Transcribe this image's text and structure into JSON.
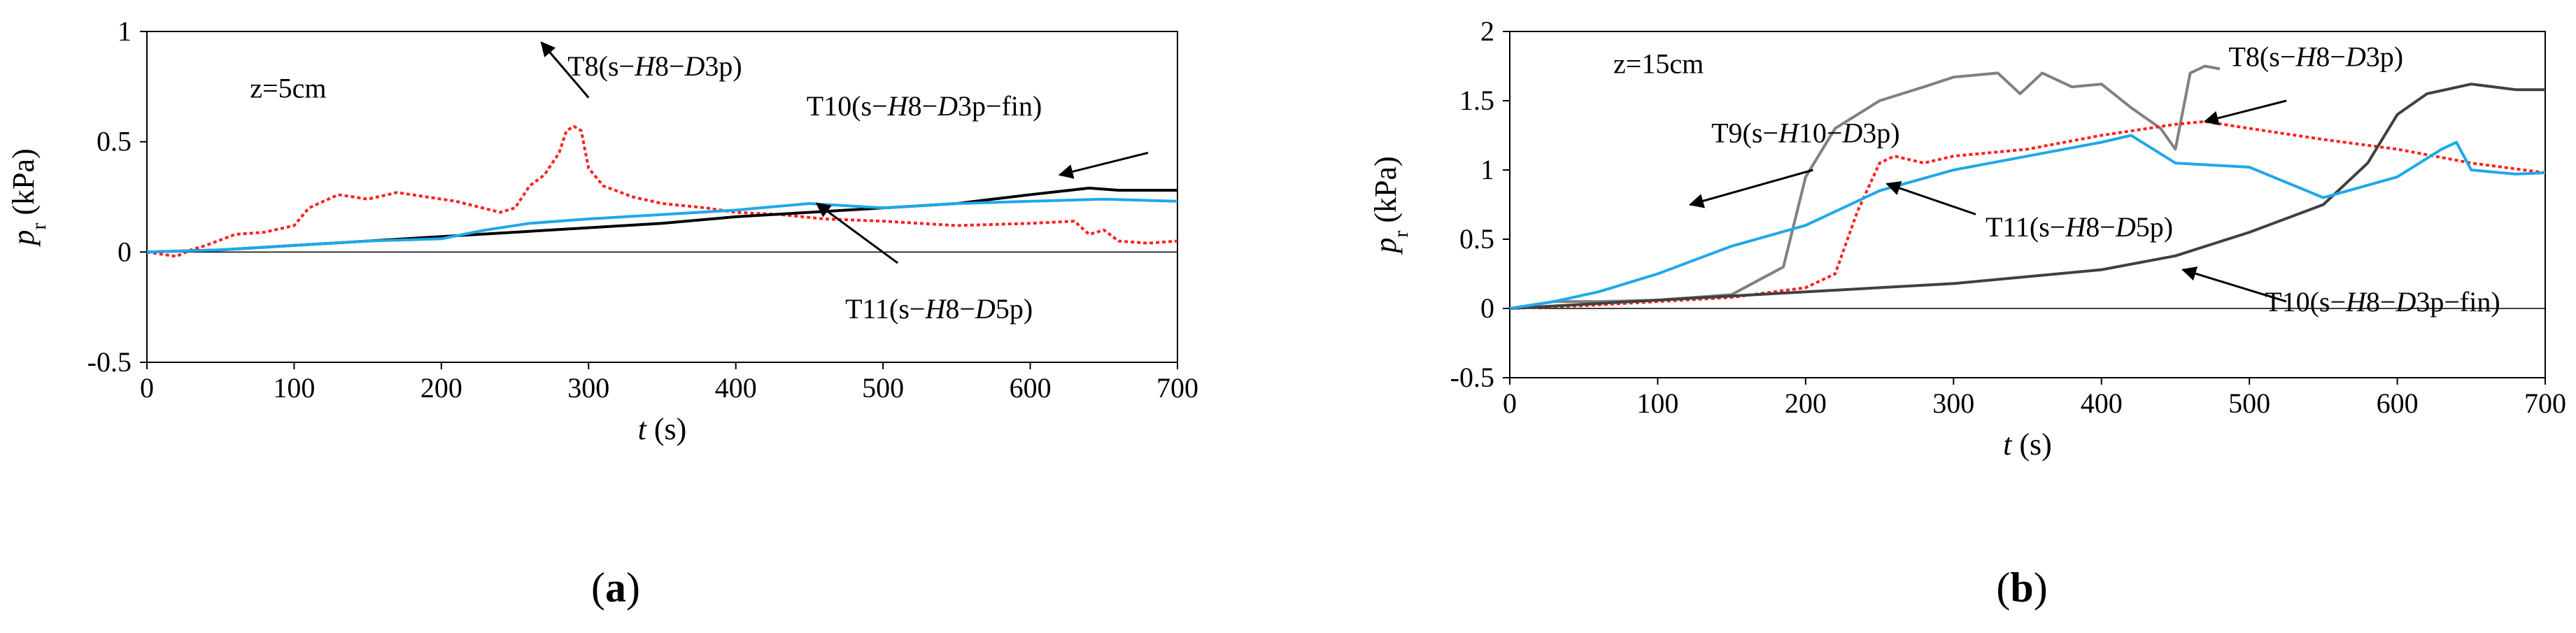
{
  "chart_data": [
    {
      "type": "line",
      "panel_label": "a",
      "xlabel": "t",
      "xlabel_unit": " (s)",
      "ylabel": "p",
      "ylabel_sub": "r",
      "ylabel_unit": " (kPa)",
      "xlim": [
        0,
        700
      ],
      "ylim": [
        -0.5,
        1
      ],
      "xticks": [
        0,
        100,
        200,
        300,
        400,
        500,
        600,
        700
      ],
      "yticks": [
        -0.5,
        0,
        0.5,
        1
      ],
      "ytick_labels": [
        "-0.5",
        "0",
        "0.5",
        "1"
      ],
      "grid": false,
      "annotation": "z=5cm",
      "series": [
        {
          "name": "T8(s-H8-D3p)",
          "label_parts": [
            "T8(s−",
            "H",
            "8−",
            "D",
            "3p)"
          ],
          "color": "#ff2020",
          "dash": "dotted",
          "x": [
            0,
            20,
            30,
            40,
            60,
            80,
            100,
            110,
            130,
            150,
            170,
            190,
            210,
            240,
            250,
            260,
            270,
            280,
            285,
            290,
            295,
            300,
            310,
            330,
            350,
            380,
            400,
            430,
            460,
            500,
            550,
            600,
            630,
            640,
            650,
            660,
            680,
            700
          ],
          "y": [
            0,
            -0.02,
            0.01,
            0.03,
            0.08,
            0.09,
            0.12,
            0.2,
            0.26,
            0.24,
            0.27,
            0.25,
            0.23,
            0.18,
            0.2,
            0.3,
            0.35,
            0.45,
            0.55,
            0.57,
            0.55,
            0.38,
            0.3,
            0.25,
            0.22,
            0.2,
            0.18,
            0.17,
            0.15,
            0.14,
            0.12,
            0.13,
            0.14,
            0.08,
            0.1,
            0.05,
            0.04,
            0.05
          ]
        },
        {
          "name": "T10(s-H8-D3p-fin)",
          "label_parts": [
            "T10(s−",
            "H",
            "8−",
            "D",
            "3p−fin)"
          ],
          "color": "#000000",
          "dash": "solid",
          "x": [
            0,
            50,
            100,
            150,
            200,
            250,
            300,
            350,
            400,
            450,
            500,
            550,
            600,
            640,
            660,
            700
          ],
          "y": [
            0,
            0.01,
            0.03,
            0.05,
            0.07,
            0.09,
            0.11,
            0.13,
            0.16,
            0.18,
            0.2,
            0.22,
            0.26,
            0.29,
            0.28,
            0.28
          ]
        },
        {
          "name": "T11(s-H8-D5p)",
          "label_parts": [
            "T11(s−",
            "H",
            "8−",
            "D",
            "5p)"
          ],
          "color": "#20a8e8",
          "dash": "solid",
          "x": [
            0,
            50,
            100,
            150,
            200,
            230,
            260,
            300,
            350,
            400,
            450,
            500,
            550,
            600,
            650,
            700
          ],
          "y": [
            0,
            0.01,
            0.03,
            0.05,
            0.06,
            0.1,
            0.13,
            0.15,
            0.17,
            0.19,
            0.22,
            0.2,
            0.22,
            0.23,
            0.24,
            0.23
          ]
        }
      ],
      "labels": [
        {
          "series": "T8(s-H8-D3p)",
          "pos": [
            345,
            0.8
          ]
        },
        {
          "series": "T10(s-H8-D3p-fin)",
          "pos": [
            528,
            0.62
          ]
        },
        {
          "series": "T11(s-H8-D5p)",
          "pos": [
            538,
            -0.3
          ]
        }
      ]
    },
    {
      "type": "line",
      "panel_label": "b",
      "xlabel": "t",
      "xlabel_unit": " (s)",
      "ylabel": "p",
      "ylabel_sub": "r",
      "ylabel_unit": " (kPa)",
      "xlim": [
        0,
        700
      ],
      "ylim": [
        -0.5,
        2
      ],
      "xticks": [
        0,
        100,
        200,
        300,
        400,
        500,
        600,
        700
      ],
      "yticks": [
        -0.5,
        0,
        0.5,
        1,
        1.5,
        2
      ],
      "ytick_labels": [
        "-0.5",
        "0",
        "0.5",
        "1",
        "1.5",
        "2"
      ],
      "grid": false,
      "annotation": "z=15cm",
      "series": [
        {
          "name": "T9(s-H10-D3p)",
          "label_parts": [
            "T9(s−",
            "H",
            "10−",
            "D",
            "3p)"
          ],
          "color": "#808080",
          "dash": "solid",
          "x": [
            0,
            30,
            60,
            100,
            150,
            185,
            200,
            220,
            250,
            280,
            300,
            330,
            345,
            360,
            380,
            400,
            420,
            440,
            450,
            460,
            470,
            480
          ],
          "y": [
            0,
            0.05,
            0.05,
            0.06,
            0.1,
            0.3,
            0.95,
            1.3,
            1.5,
            1.6,
            1.67,
            1.7,
            1.55,
            1.7,
            1.6,
            1.62,
            1.45,
            1.3,
            1.15,
            1.7,
            1.75,
            1.73
          ]
        },
        {
          "name": "T8(s-H8-D3p)",
          "label_parts": [
            "T8(s−",
            "H",
            "8−",
            "D",
            "3p)"
          ],
          "color": "#ff2020",
          "dash": "dotted",
          "x": [
            0,
            50,
            100,
            150,
            200,
            220,
            235,
            250,
            260,
            280,
            300,
            350,
            400,
            450,
            470,
            500,
            550,
            600,
            650,
            700
          ],
          "y": [
            0,
            0.02,
            0.05,
            0.08,
            0.15,
            0.25,
            0.7,
            1.05,
            1.1,
            1.05,
            1.1,
            1.15,
            1.25,
            1.33,
            1.35,
            1.3,
            1.22,
            1.15,
            1.05,
            0.98
          ]
        },
        {
          "name": "T10(s-H8-D3p-fin)",
          "label_parts": [
            "T10(s−",
            "H",
            "8−",
            "D",
            "3p−fin)"
          ],
          "color": "#404040",
          "dash": "solid",
          "x": [
            0,
            100,
            200,
            300,
            400,
            450,
            500,
            550,
            580,
            600,
            620,
            650,
            680,
            700
          ],
          "y": [
            0,
            0.06,
            0.12,
            0.18,
            0.28,
            0.38,
            0.55,
            0.75,
            1.05,
            1.4,
            1.55,
            1.62,
            1.58,
            1.58
          ]
        },
        {
          "name": "T11(s-H8-D5p)",
          "label_parts": [
            "T11(s−",
            "H",
            "8−",
            "D",
            "5p)"
          ],
          "color": "#20a8e8",
          "dash": "solid",
          "x": [
            0,
            30,
            60,
            100,
            150,
            200,
            250,
            300,
            350,
            400,
            420,
            450,
            500,
            550,
            600,
            630,
            640,
            650,
            680,
            700
          ],
          "y": [
            0,
            0.05,
            0.12,
            0.25,
            0.45,
            0.6,
            0.85,
            1.0,
            1.1,
            1.2,
            1.25,
            1.05,
            1.02,
            0.8,
            0.95,
            1.15,
            1.2,
            1.0,
            0.97,
            0.98
          ]
        }
      ],
      "labels": [
        {
          "series": "T8(s-H8-D3p)",
          "pos": [
            545,
            1.75
          ]
        },
        {
          "series": "T9(s-H10-D3p)",
          "pos": [
            200,
            1.2
          ]
        },
        {
          "series": "T11(s-H8-D5p)",
          "pos": [
            385,
            0.52
          ]
        },
        {
          "series": "T10(s-H8-D3p-fin)",
          "pos": [
            590,
            -0.02
          ]
        }
      ]
    }
  ]
}
